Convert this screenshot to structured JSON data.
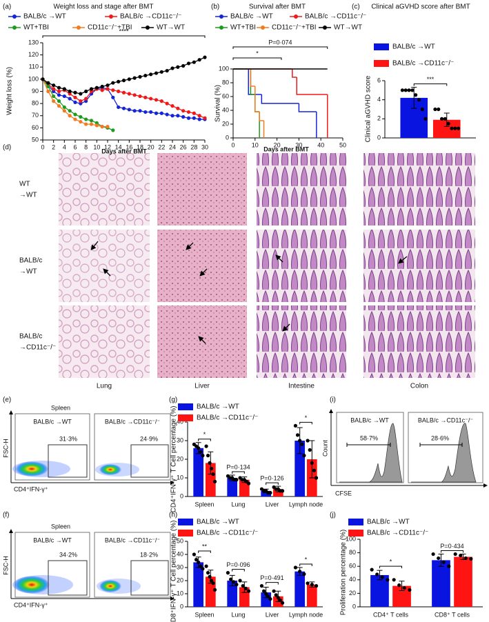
{
  "chart_data": [
    {
      "type": "line",
      "label": "(a)",
      "title": "Weight loss and stage after BMT",
      "x_label": "Days after BMT",
      "y_label": "Weight loss (%)",
      "x": [
        0,
        1,
        2,
        3,
        4,
        5,
        6,
        7,
        8,
        9,
        10,
        11,
        12,
        13,
        14,
        15,
        16,
        17,
        18,
        19,
        20,
        21,
        22,
        23,
        24,
        25,
        26,
        27,
        28,
        29,
        30
      ],
      "xlim": [
        0,
        30
      ],
      "xticks": [
        0,
        2,
        4,
        6,
        8,
        10,
        12,
        14,
        16,
        18,
        20,
        22,
        24,
        26,
        28,
        30
      ],
      "ylim": [
        50,
        130
      ],
      "yticks": [
        50,
        60,
        70,
        80,
        90,
        100,
        110,
        120,
        130
      ],
      "annotations": [
        "****"
      ],
      "series": [
        {
          "name": "BALB/c →WT",
          "color": "#1424d8",
          "values": [
            100,
            95,
            90,
            87,
            86,
            84,
            81,
            80,
            82,
            88,
            92,
            93,
            92,
            85,
            77,
            76,
            75,
            74,
            74,
            73,
            73,
            72,
            72,
            71,
            70,
            70,
            69,
            68,
            68,
            67,
            67
          ]
        },
        {
          "name": "BALB/c →CD11c⁻/⁻",
          "color": "#f01818",
          "values": [
            100,
            96,
            92,
            90,
            91,
            88,
            85,
            82,
            84,
            90,
            92,
            91,
            92,
            91,
            90,
            89,
            88,
            87,
            86,
            85,
            84,
            83,
            82,
            80,
            78,
            76,
            74,
            73,
            72,
            70,
            68
          ]
        },
        {
          "name": "WT+TBI",
          "color": "#1e9a1e",
          "values": [
            100,
            94,
            86,
            82,
            77,
            74,
            71,
            69,
            67,
            66,
            64,
            61,
            60,
            58,
            null,
            null,
            null,
            null,
            null,
            null,
            null,
            null,
            null,
            null,
            null,
            null,
            null,
            null,
            null,
            null,
            null
          ]
        },
        {
          "name": "CD11c⁻/⁻+TBI",
          "color": "#f47a20",
          "values": [
            100,
            90,
            82,
            78,
            74,
            70,
            67,
            65,
            63,
            63,
            62,
            61,
            61,
            null,
            null,
            null,
            null,
            null,
            null,
            null,
            null,
            null,
            null,
            null,
            null,
            null,
            null,
            null,
            null,
            null,
            null
          ]
        },
        {
          "name": "WT→WT",
          "color": "#000000",
          "values": [
            100,
            97,
            95,
            93,
            92,
            90,
            89,
            88,
            90,
            92,
            93,
            94,
            95,
            97,
            98,
            99,
            100,
            101,
            102,
            103,
            104,
            105,
            106,
            107,
            109,
            110,
            111,
            113,
            114,
            116,
            118
          ]
        }
      ]
    },
    {
      "type": "step",
      "label": "(b)",
      "title": "Survival after BMT",
      "x_label": "Days after BMT",
      "y_label": "Survival (%)",
      "xlim": [
        0,
        50
      ],
      "xticks": [
        0,
        10,
        20,
        30,
        40,
        50
      ],
      "ylim": [
        0,
        100
      ],
      "yticks": [
        0,
        20,
        40,
        60,
        80,
        100
      ],
      "annotations": [
        "P=0·074",
        "*"
      ],
      "series": [
        {
          "name": "BALB/c →WT",
          "color": "#1424d8",
          "x": [
            0,
            7,
            13,
            30,
            38
          ],
          "values": [
            100,
            63,
            50,
            38,
            0
          ]
        },
        {
          "name": "BALB/c →CD11c⁻/⁻",
          "color": "#f01818",
          "x": [
            0,
            27,
            29,
            43
          ],
          "values": [
            100,
            88,
            63,
            0
          ]
        },
        {
          "name": "WT+TBI",
          "color": "#1e9a1e",
          "x": [
            0,
            8,
            10,
            12
          ],
          "values": [
            100,
            63,
            38,
            0
          ]
        },
        {
          "name": "CD11c⁻/⁻+TBI",
          "color": "#f47a20",
          "x": [
            0,
            8,
            10,
            12,
            14
          ],
          "values": [
            100,
            75,
            38,
            25,
            0
          ]
        },
        {
          "name": "WT→WT",
          "color": "#000000",
          "x": [
            0,
            43
          ],
          "values": [
            100,
            100
          ]
        }
      ]
    },
    {
      "type": "bar",
      "label": "(c)",
      "title": "Clinical aGVHD score after BMT",
      "y_label": "Clinical aGVHD score",
      "categories": [
        null
      ],
      "ylim": [
        0,
        6
      ],
      "yticks": [
        0,
        2,
        4,
        6
      ],
      "annotations": [
        "***"
      ],
      "series": [
        {
          "name": "BALB/c →WT",
          "color": "#0a14e0",
          "values": [
            4.2
          ],
          "errors": [
            1.1
          ],
          "points": [
            [
              5,
              5,
              5,
              5,
              4.5,
              4,
              3,
              2
            ]
          ]
        },
        {
          "name": "BALB/c →CD11c⁻/⁻",
          "color": "#ff1414",
          "values": [
            1.9
          ],
          "errors": [
            0.7
          ],
          "points": [
            [
              3,
              3,
              2,
              2,
              1.5,
              1,
              1,
              1
            ]
          ]
        }
      ]
    },
    {
      "type": "bar",
      "label": "(g)",
      "y_label": "CD4⁺IFN-γ⁺ T Cell percentage (%)",
      "categories": [
        "Spleen",
        "Lung",
        "Liver",
        "Lymph node"
      ],
      "ylim": [
        0,
        40
      ],
      "yticks": [
        0,
        10,
        20,
        30,
        40
      ],
      "annotations": [
        "*",
        "P=0·134",
        "P=0·126",
        "*"
      ],
      "series": [
        {
          "name": "BALB/c →WT",
          "color": "#0a14e0",
          "values": [
            26,
            10,
            3,
            30
          ],
          "errors": [
            3,
            1.5,
            1,
            7
          ],
          "points": [
            [
              28,
              27,
              26,
              24,
              22
            ],
            [
              11,
              10,
              10,
              9,
              9
            ],
            [
              4,
              3,
              3,
              2,
              2
            ],
            [
              38,
              33,
              30,
              28,
              22
            ]
          ]
        },
        {
          "name": "BALB/c →CD11c⁻/⁻",
          "color": "#ff1414",
          "values": [
            18,
            9,
            4,
            20
          ],
          "errors": [
            6,
            1.5,
            1.5,
            10
          ],
          "points": [
            [
              27,
              22,
              18,
              15,
              12,
              8
            ],
            [
              10,
              9,
              9,
              8,
              7
            ],
            [
              5,
              4,
              4,
              3,
              3
            ],
            [
              30,
              25,
              18,
              14,
              10
            ]
          ]
        }
      ]
    },
    {
      "type": "bar",
      "label": "(h)",
      "y_label": "CD8⁺IFN-γ⁺ T Cell percentage (%)",
      "categories": [
        "Spleen",
        "Lung",
        "Liver",
        "Lymph node"
      ],
      "ylim": [
        0,
        50
      ],
      "yticks": [
        0,
        10,
        20,
        30,
        40,
        50
      ],
      "annotations": [
        "**",
        "P=0·096",
        "P=0·491",
        "*"
      ],
      "series": [
        {
          "name": "BALB/c →WT",
          "color": "#0a14e0",
          "values": [
            34,
            20,
            11,
            27
          ],
          "errors": [
            4,
            4,
            4,
            3
          ],
          "points": [
            [
              40,
              36,
              34,
              31,
              29
            ],
            [
              26,
              21,
              19,
              17
            ],
            [
              16,
              12,
              10,
              8,
              6
            ],
            [
              30,
              27,
              25
            ]
          ]
        },
        {
          "name": "BALB/c →CD11c⁻/⁻",
          "color": "#ff1414",
          "values": [
            23,
            15,
            8,
            17
          ],
          "errors": [
            5,
            4,
            4,
            2
          ],
          "points": [
            [
              31,
              26,
              23,
              20,
              18,
              13
            ],
            [
              20,
              16,
              14,
              12
            ],
            [
              12,
              9,
              7,
              5,
              3
            ],
            [
              18,
              17,
              16
            ]
          ]
        }
      ]
    },
    {
      "type": "bar",
      "label": "(j)",
      "y_label": "Proliferation percentage (%)",
      "categories": [
        "CD4⁺ T cells",
        "CD8⁺ T cells"
      ],
      "ylim": [
        0,
        100
      ],
      "yticks": [
        0,
        20,
        40,
        60,
        80,
        100
      ],
      "annotations": [
        "*",
        "P=0·434"
      ],
      "series": [
        {
          "name": "BALB/c →WT",
          "color": "#0a14e0",
          "values": [
            47,
            69
          ],
          "errors": [
            7,
            9
          ],
          "points": [
            [
              55,
              48,
              44,
              40
            ],
            [
              78,
              72,
              66,
              60
            ]
          ]
        },
        {
          "name": "BALB/c →CD11c⁻/⁻",
          "color": "#ff1414",
          "values": [
            31,
            74
          ],
          "errors": [
            7,
            4
          ],
          "points": [
            [
              40,
              32,
              28,
              25
            ],
            [
              78,
              76,
              72,
              71
            ]
          ]
        }
      ]
    }
  ],
  "histology": {
    "label": "(d)",
    "rows": [
      [
        "WT",
        "→WT"
      ],
      [
        "BALB/c",
        "→WT"
      ],
      [
        "BALB/c",
        "→CD11c⁻/⁻"
      ]
    ],
    "columns": [
      "Lung",
      "Liver",
      "Intestine",
      "Colon"
    ]
  },
  "flow": {
    "e": {
      "label": "(e)",
      "tissue": "Spleen",
      "y_label": "FSC-H",
      "x_label": "CD4⁺IFN-γ⁺",
      "plots": [
        {
          "title": "BALB/c →WT",
          "gate": "31·3%"
        },
        {
          "title": "BALB/c →CD11c⁻/⁻",
          "gate": "24·9%"
        }
      ]
    },
    "f": {
      "label": "(f)",
      "tissue": "Spleen",
      "y_label": "FSC-H",
      "x_label": "CD4⁺IFN-γ⁺",
      "plots": [
        {
          "title": "BALB/c →WT",
          "gate": "34·2%"
        },
        {
          "title": "BALB/c →CD11c⁻/⁻",
          "gate": "18·2%"
        }
      ]
    },
    "i": {
      "label": "(i)",
      "y_label": "Count",
      "x_label": "CFSE",
      "plots": [
        {
          "title": "BALB/c →WT",
          "gate": "58·7%"
        },
        {
          "title": "BALB/c →CD11c⁻/⁻",
          "gate": "28·6%"
        }
      ]
    }
  }
}
